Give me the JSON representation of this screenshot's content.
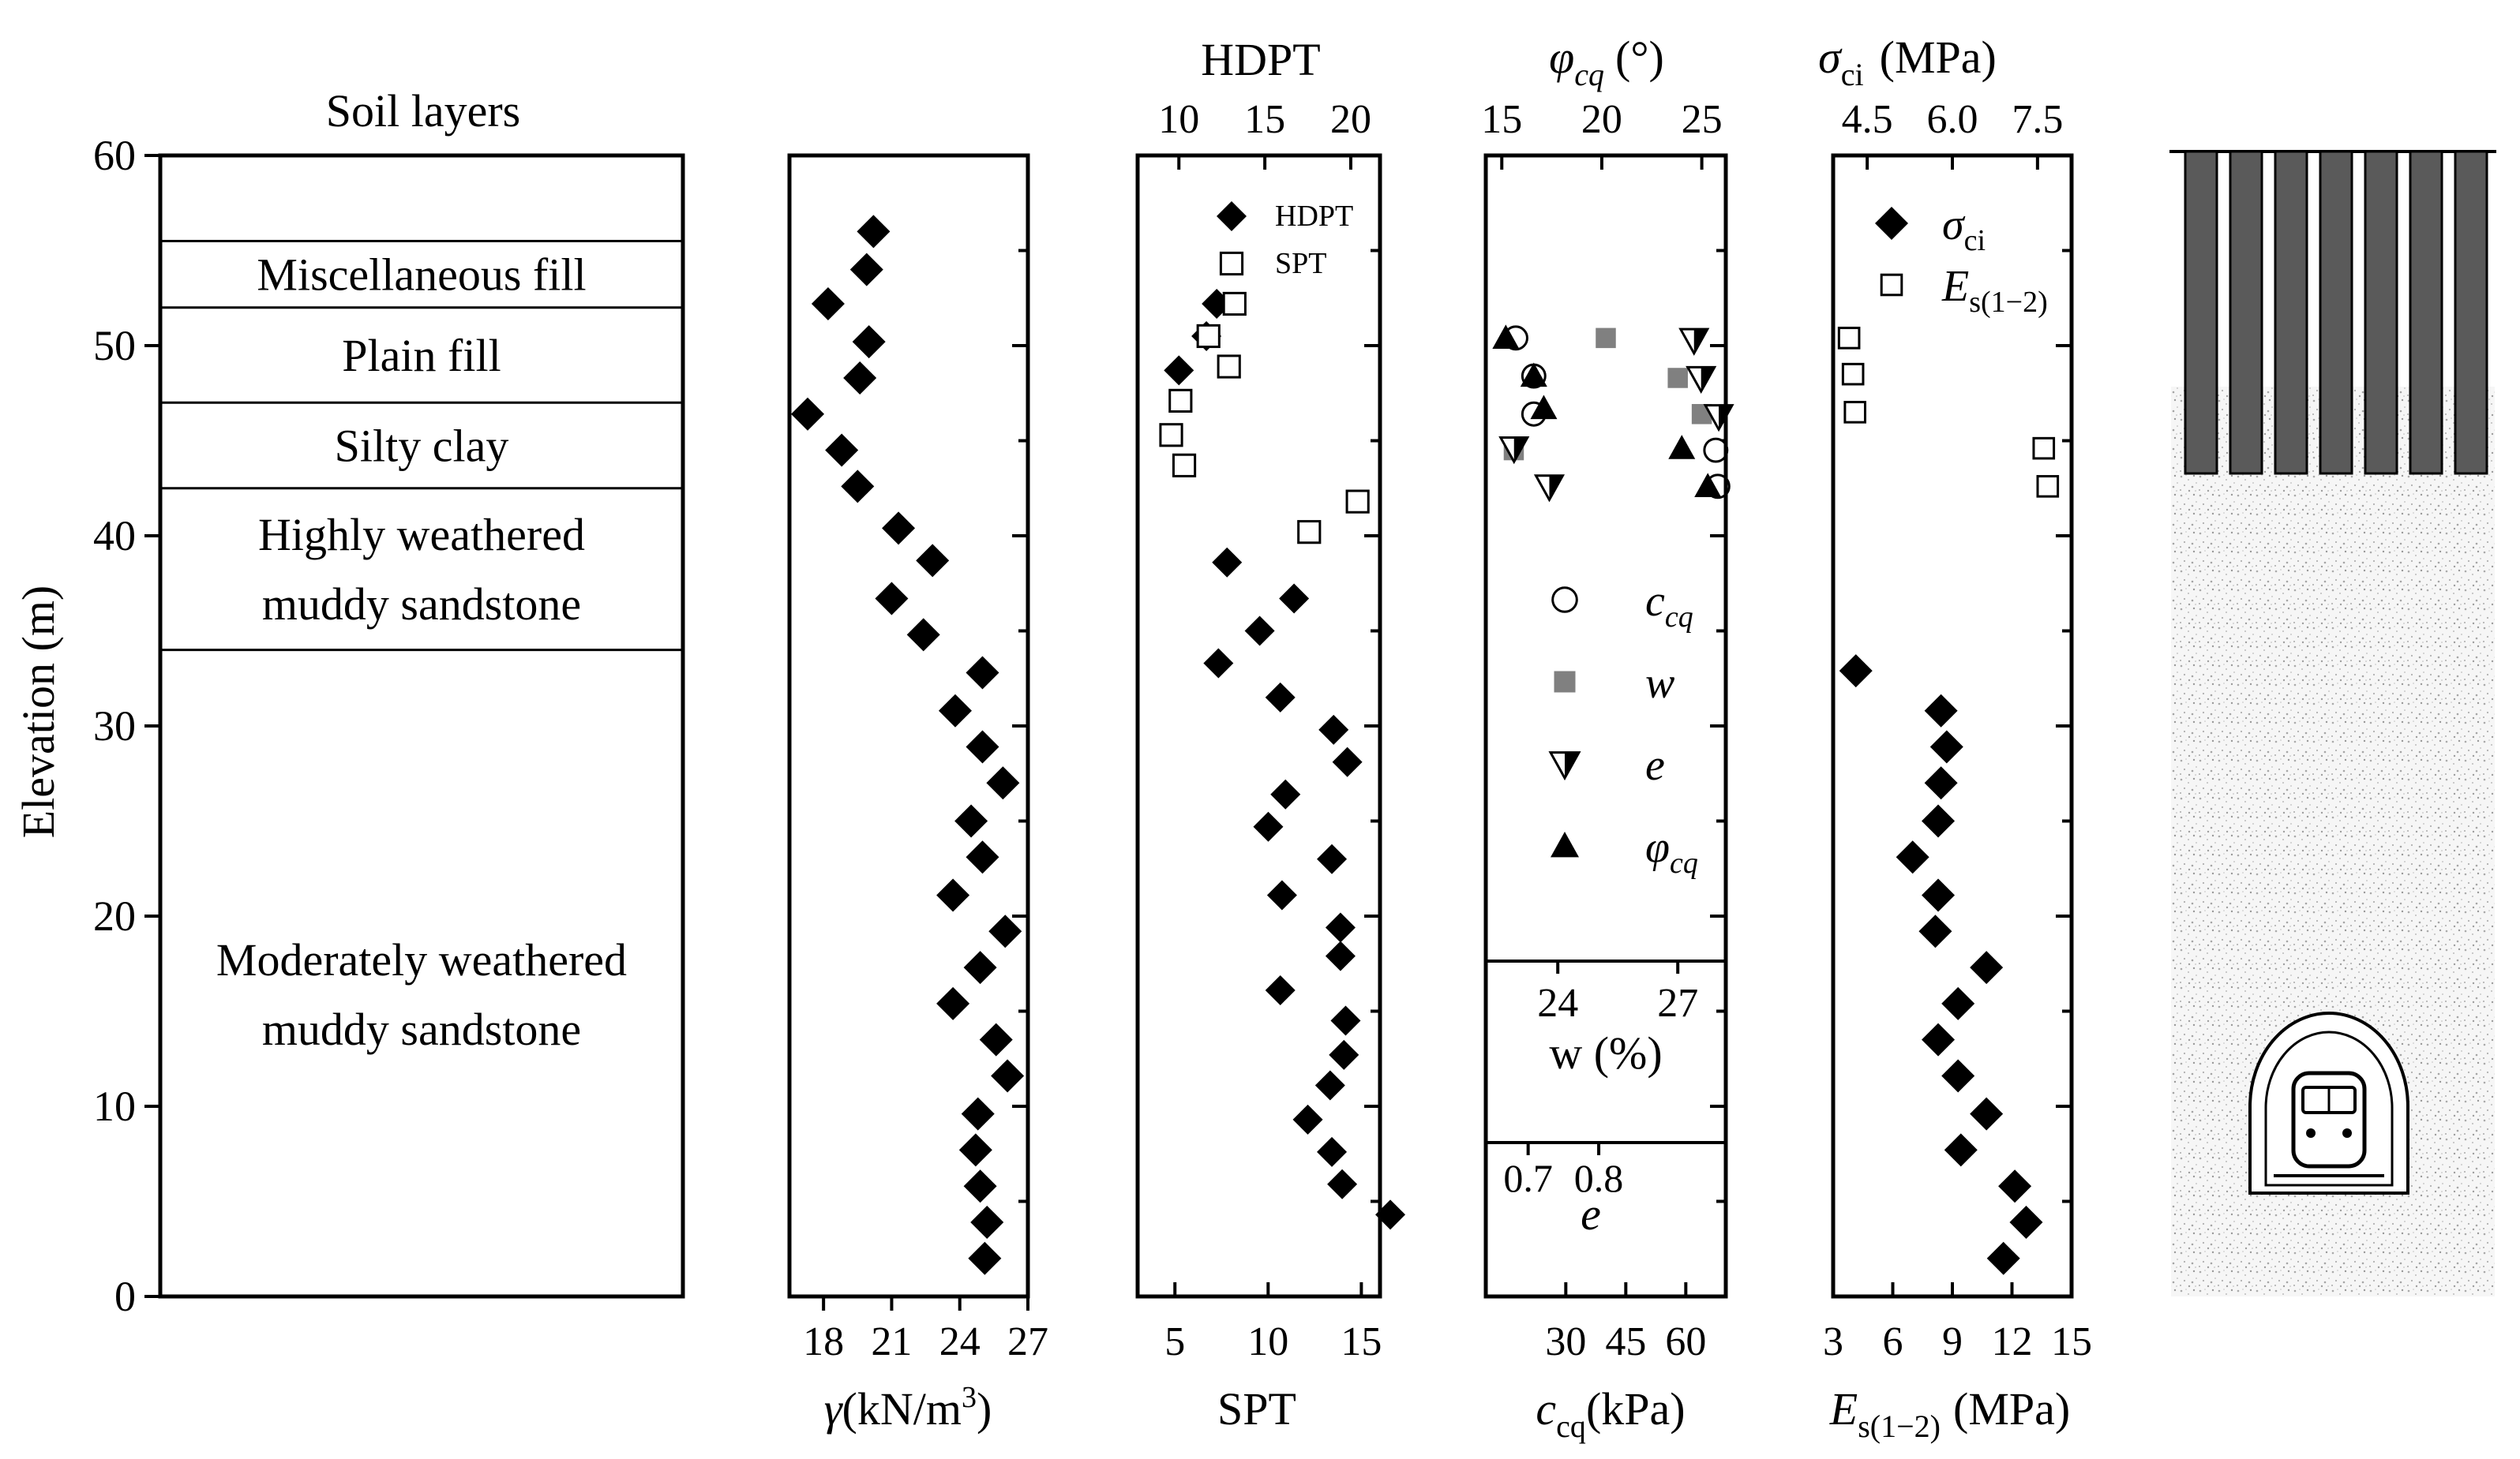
{
  "chart_data": [
    {
      "type": "table",
      "title": "Soil layers",
      "ylabel": "Elevation (m)",
      "ylim": [
        0,
        60
      ],
      "yticks": [
        0,
        10,
        20,
        30,
        40,
        50,
        60
      ],
      "boundaries": [
        55.5,
        52,
        47,
        42.5,
        34
      ],
      "layers": [
        {
          "lines": [
            "Miscellaneous fill"
          ],
          "top": 55.5,
          "bottom": 52
        },
        {
          "lines": [
            "Plain fill"
          ],
          "top": 52,
          "bottom": 47
        },
        {
          "lines": [
            "Silty clay"
          ],
          "top": 47,
          "bottom": 42.5
        },
        {
          "lines": [
            "Highly weathered",
            "muddy sandstone"
          ],
          "top": 42.5,
          "bottom": 34
        },
        {
          "lines": [
            "Moderately weathered",
            "muddy sandstone"
          ],
          "top": 34,
          "bottom": 0
        }
      ]
    },
    {
      "type": "scatter",
      "xlabel": "γ (kN/m³)",
      "xlabel_main": "γ",
      "xlabel_unit": "(kN/m",
      "xlabel_sup": "3",
      "xlabel_close": ")",
      "xlim": [
        16.5,
        27
      ],
      "xticks": [
        18,
        21,
        24,
        27
      ],
      "ylim": [
        0,
        60
      ],
      "series": [
        {
          "name": "γ",
          "marker": "filled-diamond",
          "points": [
            [
              20.2,
              56
            ],
            [
              19.9,
              54
            ],
            [
              18.2,
              52.2
            ],
            [
              20.0,
              50.2
            ],
            [
              19.6,
              48.3
            ],
            [
              17.3,
              46.4
            ],
            [
              18.8,
              44.5
            ],
            [
              19.5,
              42.6
            ],
            [
              21.3,
              40.4
            ],
            [
              22.8,
              38.7
            ],
            [
              21.0,
              36.7
            ],
            [
              22.4,
              34.8
            ],
            [
              25.0,
              32.8
            ],
            [
              23.8,
              30.8
            ],
            [
              25.0,
              28.9
            ],
            [
              25.9,
              27
            ],
            [
              24.5,
              25
            ],
            [
              25.0,
              23.1
            ],
            [
              23.7,
              21.1
            ],
            [
              26.0,
              19.2
            ],
            [
              24.9,
              17.3
            ],
            [
              23.7,
              15.4
            ],
            [
              25.6,
              13.5
            ],
            [
              26.1,
              11.6
            ],
            [
              24.8,
              9.6
            ],
            [
              24.7,
              7.7
            ],
            [
              24.9,
              5.8
            ],
            [
              25.2,
              3.9
            ],
            [
              25.1,
              2
            ]
          ]
        }
      ]
    },
    {
      "type": "scatter",
      "title": "HDPT",
      "xlabel": "SPT",
      "xlim": [
        3,
        16
      ],
      "xticks": [
        5,
        10,
        15
      ],
      "x2lim": [
        7.6,
        21.7
      ],
      "x2ticks": [
        10,
        15,
        20
      ],
      "ylim": [
        0,
        60
      ],
      "legend": [
        {
          "label": "HDPT",
          "marker": "filled-diamond"
        },
        {
          "label": "SPT",
          "marker": "open-square"
        }
      ],
      "series": [
        {
          "name": "HDPT",
          "axis": "top",
          "marker": "filled-diamond",
          "points": [
            [
              12.2,
              52.2
            ],
            [
              11.6,
              50.5
            ],
            [
              10.0,
              48.7
            ],
            [
              12.8,
              38.6
            ],
            [
              16.7,
              36.7
            ],
            [
              14.7,
              35
            ],
            [
              12.3,
              33.3
            ],
            [
              15.9,
              31.5
            ],
            [
              19.0,
              29.8
            ],
            [
              19.8,
              28.1
            ],
            [
              16.2,
              26.4
            ],
            [
              15.2,
              24.7
            ],
            [
              18.9,
              23
            ],
            [
              16.0,
              21.1
            ],
            [
              19.4,
              19.4
            ],
            [
              19.4,
              17.9
            ],
            [
              15.9,
              16.1
            ],
            [
              19.7,
              14.5
            ],
            [
              19.6,
              12.7
            ],
            [
              18.8,
              11.1
            ],
            [
              17.5,
              9.3
            ],
            [
              18.9,
              7.6
            ],
            [
              19.5,
              5.9
            ],
            [
              22.3,
              4.3
            ]
          ]
        },
        {
          "name": "SPT",
          "axis": "bottom",
          "marker": "open-square",
          "points": [
            [
              8.2,
              52.2
            ],
            [
              6.8,
              50.5
            ],
            [
              7.9,
              48.9
            ],
            [
              5.3,
              47.1
            ],
            [
              4.8,
              45.3
            ],
            [
              5.5,
              43.7
            ],
            [
              14.8,
              41.8
            ],
            [
              12.2,
              40.2
            ]
          ]
        }
      ]
    },
    {
      "type": "scatter",
      "title": "φcq (°)",
      "title_main": "φ",
      "title_sub": "cq",
      "title_unit": "(°)",
      "xlabel": "ccq(kPa)",
      "xlabel_main": "c",
      "xlabel_sub": "cq",
      "xlabel_unit": "(kPa)",
      "xlim": [
        10,
        70
      ],
      "xticks": [
        30,
        45,
        60
      ],
      "x2lim": [
        14.2,
        26.2
      ],
      "x2ticks": [
        15,
        20,
        25
      ],
      "x3label": "w (%)",
      "x3lim": [
        22.2,
        28.2
      ],
      "x3ticks": [
        24,
        27
      ],
      "x4label": "e",
      "x4lim": [
        0.64,
        0.98
      ],
      "x4ticks": [
        0.7,
        0.8
      ],
      "ylim": [
        0,
        60
      ],
      "legend": [
        {
          "label": "c",
          "sub": "cq",
          "marker": "open-circle"
        },
        {
          "label": "w",
          "sub": "",
          "marker": "grey-square"
        },
        {
          "label": "e",
          "sub": "",
          "marker": "half-triangle-down"
        },
        {
          "label": "φ",
          "sub": "cq",
          "marker": "filled-triangle-up"
        }
      ],
      "series": [
        {
          "name": "ccq",
          "axis": "bottom",
          "marker": "open-circle",
          "points": [
            [
              17.5,
              50.4
            ],
            [
              22,
              48.4
            ],
            [
              22,
              46.4
            ],
            [
              67.5,
              44.5
            ],
            [
              68,
              42.6
            ]
          ]
        },
        {
          "name": "w",
          "axis": "w",
          "marker": "grey-square",
          "points": [
            [
              25.2,
              50.4
            ],
            [
              27.0,
              48.3
            ],
            [
              27.6,
              46.4
            ],
            [
              22.9,
              44.5
            ]
          ]
        },
        {
          "name": "e",
          "axis": "e",
          "marker": "half-triangle-down",
          "points": [
            [
              0.68,
              44.6
            ],
            [
              0.73,
              42.6
            ],
            [
              0.935,
              50.3
            ],
            [
              0.945,
              48.3
            ],
            [
              0.97,
              46.3
            ]
          ]
        },
        {
          "name": "φcq",
          "axis": "top",
          "marker": "filled-triangle-up",
          "points": [
            [
              15.2,
              50.4
            ],
            [
              16.6,
              48.4
            ],
            [
              17.1,
              46.7
            ],
            [
              24.0,
              44.6
            ],
            [
              25.3,
              42.6
            ]
          ]
        }
      ]
    },
    {
      "type": "scatter",
      "title": "σci (MPa)",
      "title_main": "σ",
      "title_sub": "ci",
      "title_unit": "(MPa)",
      "xlabel": "Es(1−2) (MPa)",
      "xlabel_main": "E",
      "xlabel_sub": "s(1−2)",
      "xlabel_unit": "(MPa)",
      "xlim": [
        3,
        15
      ],
      "xticks": [
        3,
        6,
        9,
        12,
        15
      ],
      "x2lim": [
        3.9,
        8.1
      ],
      "x2ticks": [
        4.5,
        6.0,
        7.5
      ],
      "x2ticklabels": [
        "4.5",
        "6.0",
        "7.5"
      ],
      "ylim": [
        0,
        60
      ],
      "legend": [
        {
          "label": "σ",
          "sub": "ci",
          "marker": "filled-diamond"
        },
        {
          "label": "E",
          "sub": "s(1−2)",
          "marker": "open-square"
        }
      ],
      "series": [
        {
          "name": "σci",
          "axis": "top",
          "marker": "filled-diamond",
          "points": [
            [
              4.3,
              32.9
            ],
            [
              5.8,
              30.8
            ],
            [
              5.9,
              28.9
            ],
            [
              5.8,
              27
            ],
            [
              5.75,
              25
            ],
            [
              5.3,
              23.1
            ],
            [
              5.75,
              21.1
            ],
            [
              5.7,
              19.2
            ],
            [
              6.6,
              17.3
            ],
            [
              6.1,
              15.4
            ],
            [
              5.75,
              13.5
            ],
            [
              6.1,
              11.6
            ],
            [
              6.6,
              9.6
            ],
            [
              6.15,
              7.7
            ],
            [
              7.1,
              5.8
            ],
            [
              7.3,
              3.9
            ],
            [
              6.9,
              2
            ]
          ]
        },
        {
          "name": "Es(1−2)",
          "axis": "bottom",
          "marker": "open-square",
          "points": [
            [
              3.8,
              50.4
            ],
            [
              4.0,
              48.5
            ],
            [
              4.1,
              46.5
            ],
            [
              13.6,
              44.6
            ],
            [
              13.8,
              42.6
            ]
          ]
        }
      ]
    }
  ]
}
